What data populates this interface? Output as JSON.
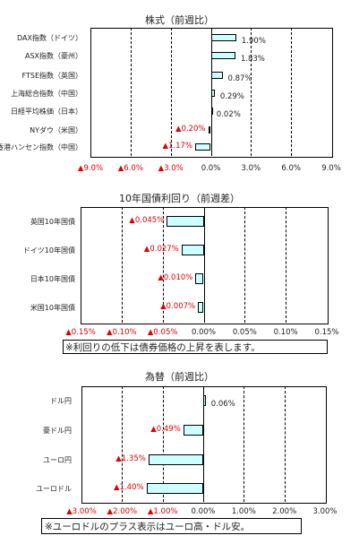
{
  "chart_data": [
    {
      "type": "bar",
      "orientation": "horizontal",
      "title": "株式（前週比）",
      "categories": [
        "DAX指数（ドイツ）",
        "ASX指数（豪州）",
        "FTSE指数（英国）",
        "上海総合指数（中国）",
        "日経平均株価（日本）",
        "NYダウ（米国）",
        "香港ハンセン指数（中国）"
      ],
      "values": [
        1.9,
        1.83,
        0.87,
        0.29,
        0.02,
        -0.2,
        -1.17
      ],
      "value_labels": [
        "1.90%",
        "1.83%",
        "0.87%",
        "0.29%",
        "0.02%",
        "▲0.20%",
        "▲1.17%"
      ],
      "xlim": [
        -9,
        9
      ],
      "ticks": [
        -9,
        -6,
        -3,
        0,
        3,
        6,
        9
      ],
      "tick_labels": [
        "▲9.0%",
        "▲6.0%",
        "▲3.0%",
        "0.0%",
        "3.0%",
        "6.0%",
        "9.0%"
      ],
      "grid": true
    },
    {
      "type": "bar",
      "orientation": "horizontal",
      "title": "10年国債利回り（前週差）",
      "categories": [
        "英国10年国債",
        "ドイツ10年国債",
        "日本10年国債",
        "米国10年国債"
      ],
      "values": [
        -0.045,
        -0.027,
        -0.01,
        -0.007
      ],
      "value_labels": [
        "▲0.045%",
        "▲0.027%",
        "▲0.010%",
        "▲0.007%"
      ],
      "xlim": [
        -0.15,
        0.15
      ],
      "ticks": [
        -0.15,
        -0.1,
        -0.05,
        0,
        0.05,
        0.1,
        0.15
      ],
      "tick_labels": [
        "▲0.15%",
        "▲0.10%",
        "▲0.05%",
        "0.00%",
        "0.05%",
        "0.10%",
        "0.15%"
      ],
      "grid": true,
      "note": "※利回りの低下は債券価格の上昇を表します。"
    },
    {
      "type": "bar",
      "orientation": "horizontal",
      "title": "為替（前週比）",
      "categories": [
        "ドル円",
        "豪ドル円",
        "ユーロ円",
        "ユーロドル"
      ],
      "values": [
        0.06,
        -0.49,
        -1.35,
        -1.4
      ],
      "value_labels": [
        "0.06%",
        "▲0.49%",
        "▲1.35%",
        "▲1.40%"
      ],
      "xlim": [
        -3,
        3
      ],
      "ticks": [
        -3,
        -2,
        -1,
        0,
        1,
        2,
        3
      ],
      "tick_labels": [
        "▲3.00%",
        "▲2.00%",
        "▲1.00%",
        "0.00%",
        "1.00%",
        "2.00%",
        "3.00%"
      ],
      "grid": true,
      "note": "※ユーロドルのプラス表示はユーロ高・ドル安。"
    }
  ]
}
